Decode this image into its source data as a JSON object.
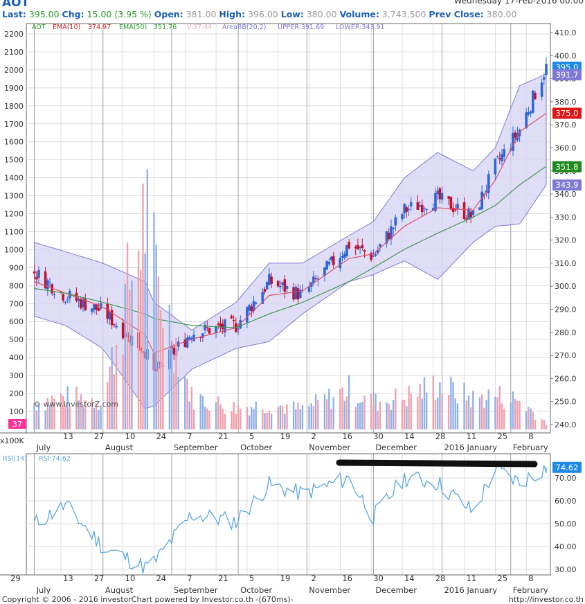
{
  "header": {
    "symbol": "AOT",
    "date": "Wednesday 17-Feb-2016 00:00",
    "last_label": "Last:",
    "last": "395.00",
    "chg_label": "Chg:",
    "chg": "15.00 (3.95 %)",
    "open_label": "Open:",
    "open": "381.00",
    "high_label": "High:",
    "high": "396.00",
    "low_label": "Low:",
    "low": "380.00",
    "volume_label": "Volume:",
    "volume": "3,743,500",
    "prev_label": "Prev Close:",
    "prev": "380.00"
  },
  "legend": {
    "sym": "AOT",
    "ema10": "EMA(10)",
    "ema10_val": "374.97",
    "ema50": "EMA(50)",
    "ema50_val": "351.76",
    "vol": "V:37.44",
    "bb": "AreaBB(20,2)",
    "upper": "UPPER:391.69",
    "lower": "LOWER:343.91"
  },
  "watermark": "© www.investorZ.com",
  "colors": {
    "up": "#2a66d6",
    "down": "#c8102e",
    "ema10": "#e34d63",
    "ema50": "#3c9a4a",
    "band_fill": "#d8d6f5",
    "band_edge": "#7f78d6",
    "rsi": "#5aa6e0"
  },
  "price_axis": {
    "ticks": [
      "410.0",
      "400.0",
      "390.0",
      "380.0",
      "370.0",
      "360.0",
      "350.0",
      "340.0",
      "330.0",
      "320.0",
      "310.0",
      "300.0",
      "290.0",
      "280.0",
      "270.0",
      "260.0",
      "250.0",
      "240.0"
    ]
  },
  "volume_axis": {
    "ticks": [
      "2200",
      "2100",
      "2000",
      "1900",
      "1800",
      "1700",
      "1600",
      "1500",
      "1400",
      "1300",
      "1200",
      "1100",
      "1000",
      "900",
      "800",
      "700",
      "600",
      "500",
      "400",
      "300",
      "200",
      "100"
    ],
    "unit": "x100K",
    "last_badge": "37"
  },
  "badges": {
    "last": "395.0",
    "upper": "391.7",
    "ema10": "375.0",
    "ema50": "351.8",
    "lower": "343.9"
  },
  "rsi": {
    "label": "RSI(14)",
    "value_label": "RSI:74.62",
    "badge": "74.62",
    "ticks": [
      "70.00",
      "60.00",
      "50.00",
      "40.00",
      "30.00"
    ]
  },
  "dates_top": [
    "13",
    "27",
    "10",
    "24",
    "7",
    "21",
    "5",
    "19",
    "2",
    "16",
    "30",
    "14",
    "28",
    "11",
    "25",
    "8"
  ],
  "dates_bottom": [
    "29",
    "13",
    "27",
    "10",
    "24",
    "7",
    "21",
    "5",
    "19",
    "2",
    "16",
    "30",
    "14",
    "28",
    "11",
    "25",
    "8"
  ],
  "months": [
    "July",
    "August",
    "September",
    "October",
    "November",
    "December",
    "2016 January",
    "February"
  ],
  "footer_left": "Copyright © 2006 - 2016 investorChart powered by Investor.co.th -(670ms)-",
  "footer_right": "http://investor.co.th",
  "chart_data": {
    "type": "line",
    "price_ylim": [
      240,
      410
    ],
    "volume_ylim": [
      0,
      2200
    ],
    "rsi_ylim": [
      25,
      78
    ],
    "x": [
      "2015-07-01",
      "2015-07-15",
      "2015-08-01",
      "2015-08-20",
      "2015-08-24",
      "2015-09-10",
      "2015-09-30",
      "2015-10-15",
      "2015-10-30",
      "2015-11-20",
      "2015-12-01",
      "2015-12-15",
      "2015-12-30",
      "2016-01-15",
      "2016-01-25",
      "2016-02-05",
      "2016-02-17"
    ],
    "series": [
      {
        "name": "AOT",
        "values": [
          306,
          296,
          289,
          272,
          262,
          280,
          283,
          302,
          296,
          318,
          313,
          333,
          338,
          330,
          352,
          368,
          395
        ]
      },
      {
        "name": "EMA(10)",
        "values": [
          302,
          297,
          291,
          279,
          271,
          277,
          282,
          296,
          298,
          312,
          314,
          326,
          334,
          333,
          346,
          367,
          375
        ]
      },
      {
        "name": "EMA(50)",
        "values": [
          299,
          297,
          293,
          288,
          286,
          283,
          282,
          288,
          293,
          302,
          308,
          316,
          323,
          330,
          335,
          344,
          352
        ]
      },
      {
        "name": "UPPER",
        "values": [
          319,
          315,
          310,
          302,
          293,
          281,
          293,
          310,
          310,
          322,
          328,
          347,
          358,
          350,
          360,
          387,
          392
        ]
      },
      {
        "name": "LOWER",
        "values": [
          287,
          283,
          273,
          247,
          248,
          264,
          273,
          276,
          288,
          302,
          305,
          311,
          303,
          319,
          326,
          327,
          344
        ]
      }
    ],
    "rsi_values": [
      50,
      58,
      40,
      31,
      33,
      54,
      51,
      67,
      63,
      70,
      53,
      70,
      68,
      55,
      74,
      68,
      74.6
    ],
    "volume_values": [
      150,
      180,
      160,
      1200,
      900,
      180,
      120,
      140,
      110,
      220,
      150,
      180,
      250,
      170,
      190,
      160,
      37
    ]
  }
}
